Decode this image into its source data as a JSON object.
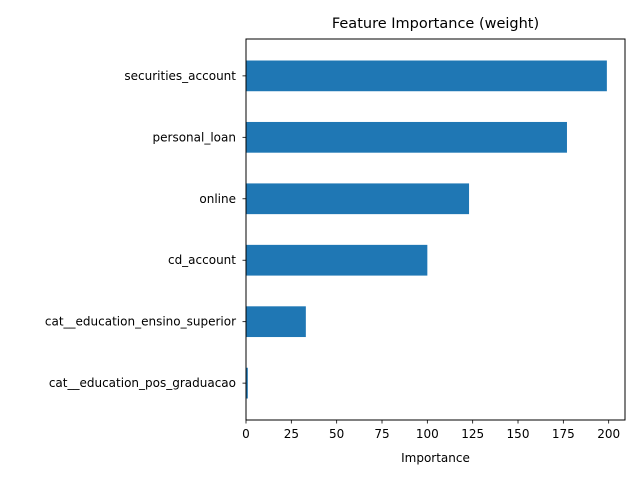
{
  "chart_data": {
    "type": "bar",
    "orientation": "horizontal",
    "title": "Feature Importance (weight)",
    "xlabel": "Importance",
    "ylabel": "",
    "categories": [
      "securities_account",
      "personal_loan",
      "online",
      "cd_account",
      "cat__education_ensino_superior",
      "cat__education_pos_graduacao"
    ],
    "values": [
      199,
      177,
      123,
      100,
      33,
      1
    ],
    "xlim": [
      0,
      209
    ],
    "xticks": [
      0,
      25,
      50,
      75,
      100,
      125,
      150,
      175,
      200
    ],
    "grid": false,
    "legend": "none",
    "bar_color": "#1f77b4"
  }
}
